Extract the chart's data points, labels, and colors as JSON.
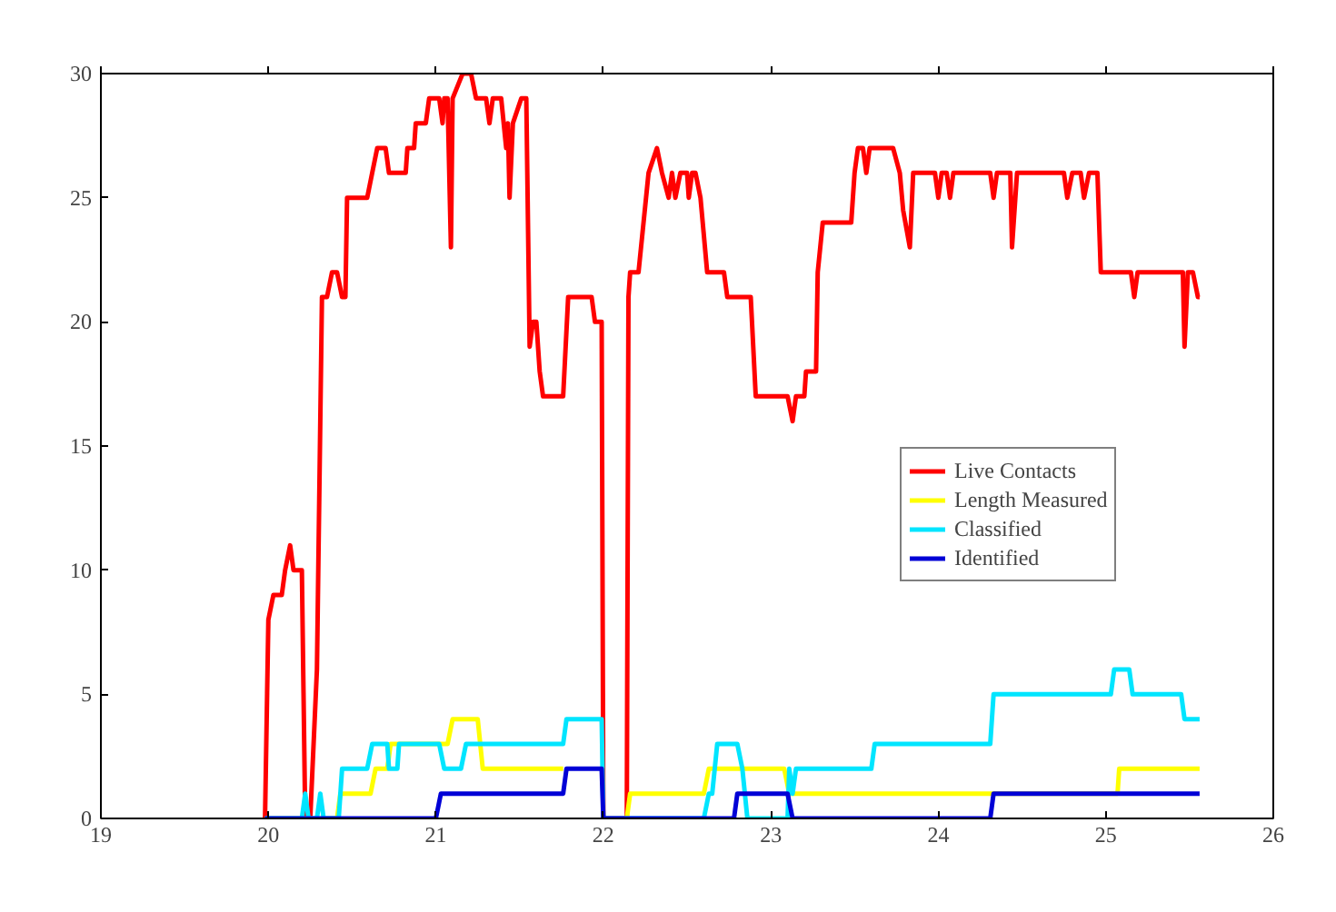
{
  "chart_data": {
    "type": "line",
    "xlim": [
      19,
      26
    ],
    "ylim": [
      0,
      30
    ],
    "xticks": [
      19,
      20,
      21,
      22,
      23,
      24,
      25,
      26
    ],
    "yticks": [
      0,
      5,
      10,
      15,
      20,
      25,
      30
    ],
    "grid": false,
    "legend": "right",
    "marker": "none",
    "line_style": "solid",
    "series": [
      {
        "name": "Live Contacts",
        "color": "#ff0000",
        "x": [
          19.98,
          20.0,
          20.03,
          20.08,
          20.1,
          20.13,
          20.15,
          20.2,
          20.22,
          20.25,
          20.29,
          20.32,
          20.35,
          20.38,
          20.41,
          20.44,
          20.46,
          20.47,
          20.59,
          20.62,
          20.65,
          20.7,
          20.72,
          20.82,
          20.83,
          20.87,
          20.88,
          20.94,
          20.96,
          21.02,
          21.04,
          21.05,
          21.07,
          21.09,
          21.1,
          21.16,
          21.21,
          21.24,
          21.3,
          21.32,
          21.34,
          21.39,
          21.42,
          21.43,
          21.44,
          21.46,
          21.51,
          21.54,
          21.56,
          21.58,
          21.6,
          21.62,
          21.64,
          21.76,
          21.79,
          21.93,
          21.95,
          21.99,
          22.0,
          22.14,
          22.15,
          22.16,
          22.21,
          22.24,
          22.27,
          22.32,
          22.35,
          22.39,
          22.41,
          22.43,
          22.46,
          22.5,
          22.51,
          22.53,
          22.55,
          22.58,
          22.62,
          22.72,
          22.74,
          22.88,
          22.91,
          23.1,
          23.13,
          23.15,
          23.2,
          23.21,
          23.27,
          23.28,
          23.31,
          23.48,
          23.5,
          23.52,
          23.55,
          23.57,
          23.59,
          23.73,
          23.77,
          23.79,
          23.83,
          23.85,
          23.98,
          24.0,
          24.02,
          24.05,
          24.07,
          24.09,
          24.31,
          24.33,
          24.35,
          24.43,
          24.44,
          24.47,
          24.75,
          24.77,
          24.8,
          24.85,
          24.87,
          24.9,
          24.95,
          24.97,
          25.15,
          25.17,
          25.19,
          25.46,
          25.47,
          25.49,
          25.52,
          25.55,
          25.56
        ],
        "values": [
          0,
          8,
          9,
          9,
          10,
          11,
          10,
          10,
          0,
          0,
          6,
          21,
          21,
          22,
          22,
          21,
          21,
          25,
          25,
          26,
          27,
          27,
          26,
          26,
          27,
          27,
          28,
          28,
          29,
          29,
          28,
          29,
          29,
          23,
          29,
          30,
          30,
          29,
          29,
          28,
          29,
          29,
          27,
          28,
          25,
          28,
          29,
          29,
          19,
          20,
          20,
          18,
          17,
          17,
          21,
          21,
          20,
          20,
          0,
          0,
          21,
          22,
          22,
          24,
          26,
          27,
          26,
          25,
          26,
          25,
          26,
          26,
          25,
          26,
          26,
          25,
          22,
          22,
          21,
          21,
          17,
          17,
          16,
          17,
          17,
          18,
          18,
          22,
          24,
          24,
          26,
          27,
          27,
          26,
          27,
          27,
          26,
          24.5,
          23,
          26,
          26,
          25,
          26,
          26,
          25,
          26,
          26,
          25,
          26,
          26,
          23,
          26,
          26,
          25,
          26,
          26,
          25,
          26,
          26,
          22,
          22,
          21,
          22,
          22,
          19,
          22,
          22,
          21,
          21
        ]
      },
      {
        "name": "Length Measured",
        "color": "#ffff00",
        "x": [
          19.98,
          20.41,
          20.43,
          20.61,
          20.64,
          20.71,
          20.73,
          21.07,
          21.1,
          21.25,
          21.28,
          21.76,
          21.99,
          22.14,
          22.16,
          22.6,
          22.63,
          23.08,
          23.11,
          25.07,
          25.08,
          25.56
        ],
        "values": [
          0,
          0,
          1,
          1,
          2,
          2,
          3,
          3,
          4,
          4,
          2,
          2,
          null,
          0,
          1,
          1,
          2,
          2,
          1,
          1,
          2,
          2
        ]
      },
      {
        "name": "Classified",
        "color": "#00e5ff",
        "x": [
          19.98,
          20.2,
          20.22,
          20.24,
          20.29,
          20.31,
          20.33,
          20.42,
          20.44,
          20.59,
          20.62,
          20.71,
          20.72,
          20.77,
          20.78,
          21.02,
          21.05,
          21.15,
          21.18,
          21.76,
          21.78,
          21.99,
          22.0,
          22.6,
          22.63,
          22.65,
          22.68,
          22.8,
          22.83,
          22.86,
          23.1,
          23.11,
          23.13,
          23.15,
          23.6,
          23.62,
          24.31,
          24.33,
          25.03,
          25.05,
          25.14,
          25.16,
          25.45,
          25.47,
          25.56
        ],
        "values": [
          0,
          0,
          1,
          0,
          0,
          1,
          0,
          0,
          2,
          2,
          3,
          3,
          2,
          2,
          3,
          3,
          2,
          2,
          3,
          3,
          4,
          4,
          0,
          0,
          1,
          1,
          3,
          3,
          2,
          0,
          0,
          2,
          1,
          2,
          2,
          3,
          3,
          5,
          5,
          6,
          6,
          5,
          5,
          4,
          4
        ]
      },
      {
        "name": "Identified",
        "color": "#0000d6",
        "x": [
          19.98,
          21.0,
          21.03,
          21.76,
          21.78,
          21.99,
          22.0,
          22.78,
          22.8,
          23.1,
          23.13,
          24.31,
          24.33,
          25.56
        ],
        "values": [
          0,
          0,
          1,
          1,
          2,
          2,
          0,
          0,
          1,
          1,
          0,
          0,
          1,
          1
        ]
      }
    ]
  }
}
